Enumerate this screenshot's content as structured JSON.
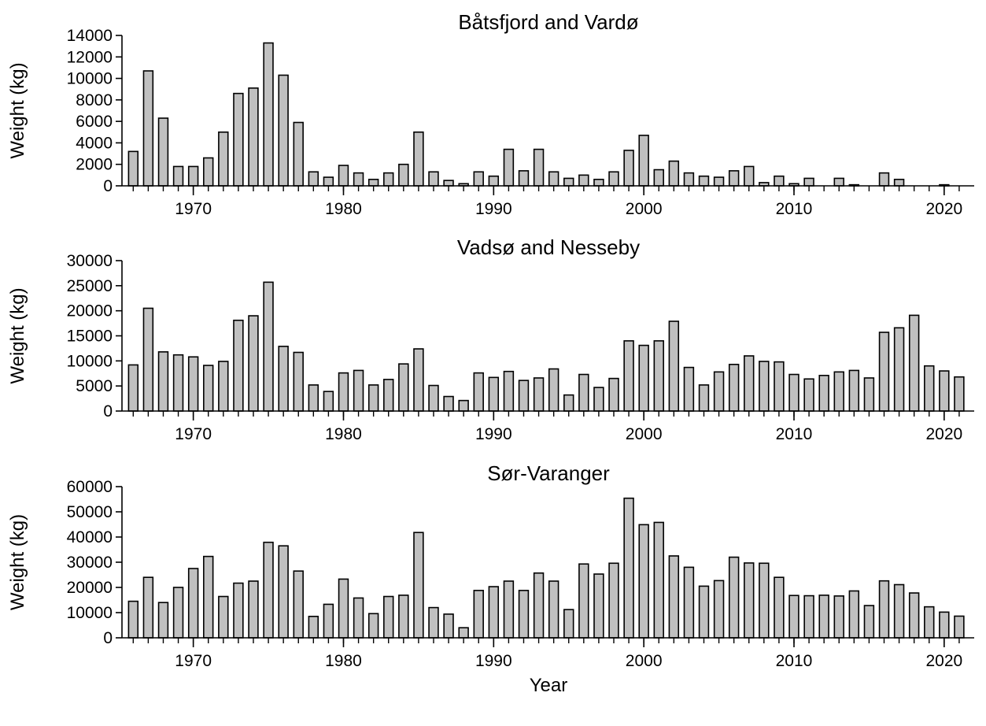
{
  "chart_data": [
    {
      "type": "bar",
      "title": "Båtsfjord and Vardø",
      "ylabel": "Weight (kg)",
      "color": "#c0c0c0",
      "x": [
        1966,
        1967,
        1968,
        1969,
        1970,
        1971,
        1972,
        1973,
        1974,
        1975,
        1976,
        1977,
        1978,
        1979,
        1980,
        1981,
        1982,
        1983,
        1984,
        1985,
        1986,
        1987,
        1988,
        1989,
        1990,
        1991,
        1992,
        1993,
        1994,
        1995,
        1996,
        1997,
        1998,
        1999,
        2000,
        2001,
        2002,
        2003,
        2004,
        2005,
        2006,
        2007,
        2008,
        2009,
        2010,
        2011,
        2012,
        2013,
        2014,
        2015,
        2016,
        2017,
        2018,
        2019,
        2020,
        2021
      ],
      "values": [
        3200,
        10700,
        6300,
        1800,
        1800,
        2600,
        5000,
        8600,
        9100,
        13300,
        10300,
        5900,
        1300,
        800,
        1900,
        1200,
        600,
        1200,
        2000,
        5000,
        1300,
        500,
        200,
        1300,
        900,
        3400,
        1400,
        3400,
        1300,
        700,
        1000,
        600,
        1300,
        3300,
        4700,
        1500,
        2300,
        1200,
        900,
        800,
        1400,
        1800,
        300,
        900,
        200,
        700,
        0,
        700,
        100,
        0,
        1200,
        600,
        0,
        0,
        100,
        0
      ],
      "xlim": [
        1965.25,
        2022
      ],
      "xticks": [
        1970,
        1980,
        1990,
        2000,
        2010,
        2020
      ],
      "ylim": [
        0,
        14000
      ],
      "yticks": [
        0,
        2000,
        4000,
        6000,
        8000,
        10000,
        12000,
        14000
      ]
    },
    {
      "type": "bar",
      "title": "Vadsø and Nesseby",
      "ylabel": "Weight (kg)",
      "color": "#c0c0c0",
      "x": [
        1966,
        1967,
        1968,
        1969,
        1970,
        1971,
        1972,
        1973,
        1974,
        1975,
        1976,
        1977,
        1978,
        1979,
        1980,
        1981,
        1982,
        1983,
        1984,
        1985,
        1986,
        1987,
        1988,
        1989,
        1990,
        1991,
        1992,
        1993,
        1994,
        1995,
        1996,
        1997,
        1998,
        1999,
        2000,
        2001,
        2002,
        2003,
        2004,
        2005,
        2006,
        2007,
        2008,
        2009,
        2010,
        2011,
        2012,
        2013,
        2014,
        2015,
        2016,
        2017,
        2018,
        2019,
        2020,
        2021
      ],
      "values": [
        9200,
        20500,
        11800,
        11200,
        10800,
        9100,
        9900,
        18100,
        19000,
        25700,
        12900,
        11700,
        5200,
        3900,
        7600,
        8100,
        5200,
        6300,
        9400,
        12400,
        5100,
        2900,
        2100,
        7600,
        6700,
        7900,
        6100,
        6600,
        8400,
        3200,
        7300,
        4700,
        6500,
        14000,
        13100,
        14000,
        17900,
        8700,
        5200,
        7800,
        9300,
        11000,
        9900,
        9800,
        7300,
        6400,
        7100,
        7800,
        8100,
        6600,
        15700,
        16600,
        19100,
        9000,
        8000,
        6800
      ],
      "xlim": [
        1965.25,
        2022
      ],
      "xticks": [
        1970,
        1980,
        1990,
        2000,
        2010,
        2020
      ],
      "ylim": [
        0,
        30000
      ],
      "yticks": [
        0,
        5000,
        10000,
        15000,
        20000,
        25000,
        30000
      ]
    },
    {
      "type": "bar",
      "title": "Sør-Varanger",
      "ylabel": "Weight (kg)",
      "xlabel": "Year",
      "color": "#c0c0c0",
      "x": [
        1966,
        1967,
        1968,
        1969,
        1970,
        1971,
        1972,
        1973,
        1974,
        1975,
        1976,
        1977,
        1978,
        1979,
        1980,
        1981,
        1982,
        1983,
        1984,
        1985,
        1986,
        1987,
        1988,
        1989,
        1990,
        1991,
        1992,
        1993,
        1994,
        1995,
        1996,
        1997,
        1998,
        1999,
        2000,
        2001,
        2002,
        2003,
        2004,
        2005,
        2006,
        2007,
        2008,
        2009,
        2010,
        2011,
        2012,
        2013,
        2014,
        2015,
        2016,
        2017,
        2018,
        2019,
        2020,
        2021
      ],
      "values": [
        14500,
        24000,
        14000,
        20000,
        27500,
        32300,
        16400,
        21700,
        22500,
        37900,
        36500,
        26500,
        8500,
        13300,
        23300,
        15800,
        9600,
        16400,
        16900,
        41800,
        12000,
        9400,
        4000,
        18800,
        20300,
        22500,
        18800,
        25700,
        22500,
        11200,
        29300,
        25300,
        29600,
        55400,
        44900,
        45800,
        32500,
        28000,
        20500,
        22700,
        32000,
        29700,
        29600,
        24000,
        16800,
        16700,
        16900,
        16600,
        18600,
        12800,
        22600,
        21100,
        17800,
        12300,
        10200,
        8600
      ],
      "xlim": [
        1965.25,
        2022
      ],
      "xticks": [
        1970,
        1980,
        1990,
        2000,
        2010,
        2020
      ],
      "ylim": [
        0,
        60000
      ],
      "yticks": [
        0,
        10000,
        20000,
        30000,
        40000,
        50000,
        60000
      ]
    }
  ]
}
